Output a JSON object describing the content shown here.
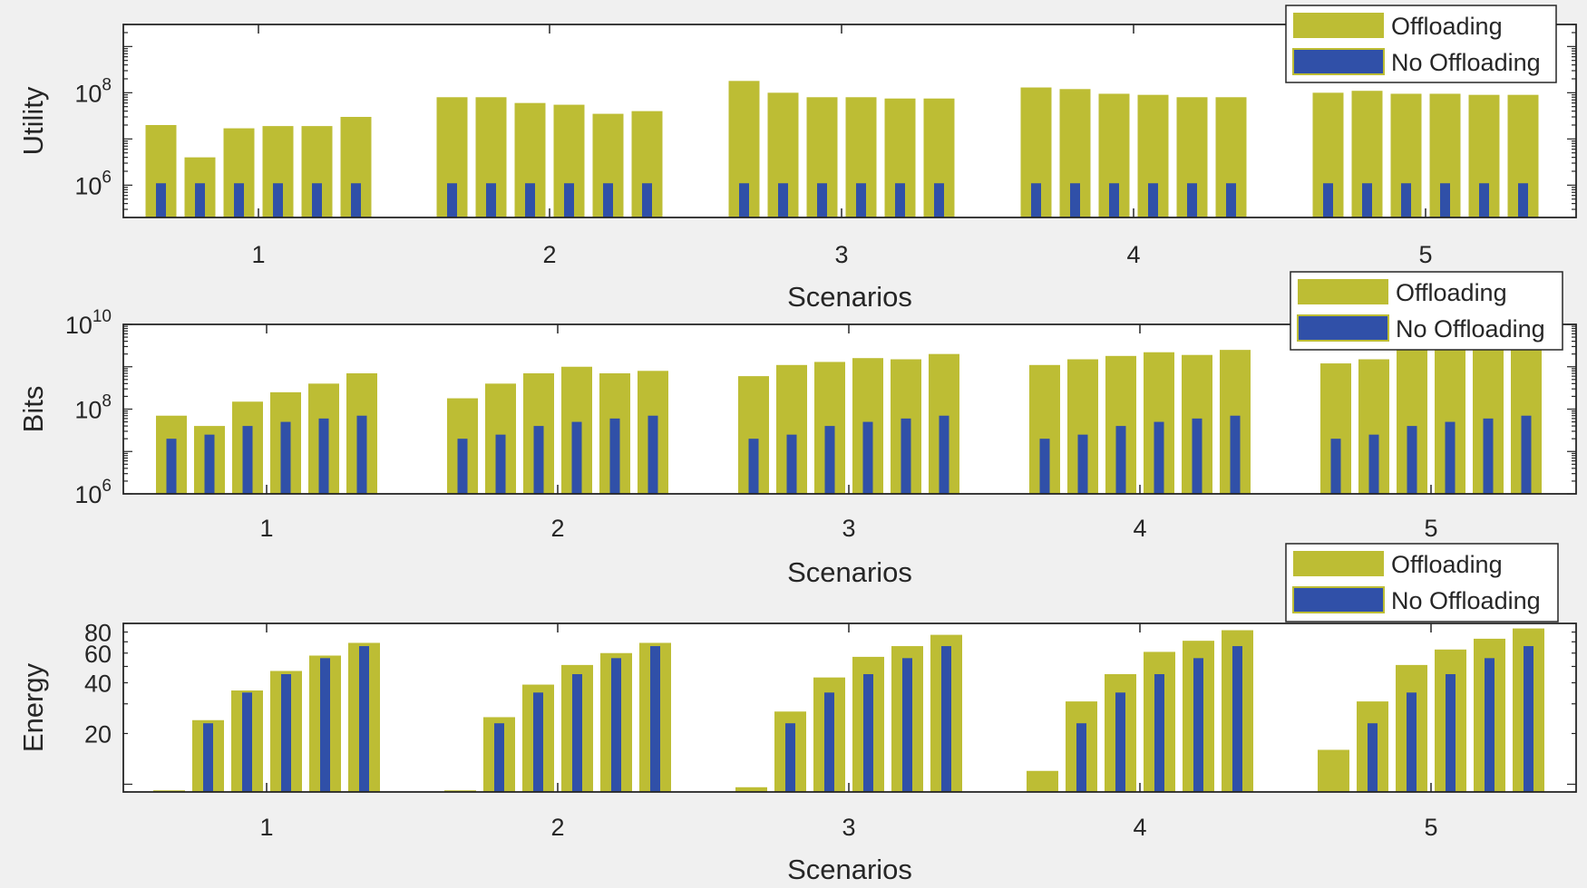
{
  "figure": {
    "background": "#f0f0f0"
  },
  "colors": {
    "offloading": "#bdbd34",
    "no_offloading": "#3050a8",
    "axis": "#262626"
  },
  "chart_data": [
    {
      "type": "bar",
      "title": "",
      "xlabel": "Scenarios",
      "ylabel": "Utility",
      "yscale": "log",
      "ylim": [
        200000,
        3000000000
      ],
      "yticks": [
        {
          "value": 1000000,
          "base": "10",
          "exp": "6"
        },
        {
          "value": 100000000,
          "base": "10",
          "exp": "8"
        }
      ],
      "categories": [
        "1",
        "2",
        "3",
        "4",
        "5"
      ],
      "series": [
        {
          "name": "Offloading",
          "values": [
            [
              20000000,
              4000000,
              17000000,
              19000000,
              19000000,
              30000000
            ],
            [
              80000000,
              80000000,
              60000000,
              55000000,
              35000000,
              40000000
            ],
            [
              180000000,
              100000000,
              80000000,
              80000000,
              75000000,
              75000000
            ],
            [
              130000000,
              120000000,
              95000000,
              90000000,
              80000000,
              80000000
            ],
            [
              100000000,
              110000000,
              95000000,
              95000000,
              90000000,
              90000000
            ]
          ]
        },
        {
          "name": "No Offloading",
          "values": [
            [
              1100000,
              1100000,
              1100000,
              1100000,
              1100000,
              1100000
            ],
            [
              1100000,
              1100000,
              1100000,
              1100000,
              1100000,
              1100000
            ],
            [
              1100000,
              1100000,
              1100000,
              1100000,
              1100000,
              1100000
            ],
            [
              1100000,
              1100000,
              1100000,
              1100000,
              1100000,
              1100000
            ],
            [
              1100000,
              1100000,
              1100000,
              1100000,
              1100000,
              1100000
            ]
          ]
        }
      ],
      "legend": {
        "entries": [
          "Offloading",
          "No Offloading"
        ],
        "location": "top-right"
      }
    },
    {
      "type": "bar",
      "title": "",
      "xlabel": "Scenarios",
      "ylabel": "Bits",
      "yscale": "log",
      "ylim": [
        1000000,
        10000000000
      ],
      "yticks": [
        {
          "value": 1000000,
          "base": "10",
          "exp": "6"
        },
        {
          "value": 100000000,
          "base": "10",
          "exp": "8"
        },
        {
          "value": 10000000000,
          "base": "10",
          "exp": "10"
        }
      ],
      "categories": [
        "1",
        "2",
        "3",
        "4",
        "5"
      ],
      "series": [
        {
          "name": "Offloading",
          "values": [
            [
              70000000,
              40000000,
              150000000,
              250000000,
              400000000,
              700000000
            ],
            [
              180000000,
              400000000,
              700000000,
              1000000000,
              700000000,
              800000000
            ],
            [
              600000000,
              1100000000,
              1300000000,
              1600000000,
              1500000000,
              2000000000
            ],
            [
              1100000000,
              1500000000,
              1800000000,
              2200000000,
              1900000000,
              2500000000
            ],
            [
              1200000000,
              1500000000,
              2700000000,
              3500000000,
              2700000000,
              3600000000
            ]
          ]
        },
        {
          "name": "No Offloading",
          "values": [
            [
              20000000,
              25000000,
              40000000,
              50000000,
              60000000,
              70000000
            ],
            [
              20000000,
              25000000,
              40000000,
              50000000,
              60000000,
              70000000
            ],
            [
              20000000,
              25000000,
              40000000,
              50000000,
              60000000,
              70000000
            ],
            [
              20000000,
              25000000,
              40000000,
              50000000,
              60000000,
              70000000
            ],
            [
              20000000,
              25000000,
              40000000,
              50000000,
              60000000,
              70000000
            ]
          ]
        }
      ],
      "legend": {
        "entries": [
          "Offloading",
          "No Offloading"
        ],
        "location": "top-right"
      }
    },
    {
      "type": "bar",
      "title": "",
      "xlabel": "Scenarios",
      "ylabel": "Energy",
      "yscale": "log",
      "ylim": [
        9,
        90
      ],
      "yticks": [
        {
          "value": 20,
          "base": "20",
          "exp": ""
        },
        {
          "value": 40,
          "base": "40",
          "exp": ""
        },
        {
          "value": 60,
          "base": "60",
          "exp": ""
        },
        {
          "value": 80,
          "base": "80",
          "exp": ""
        }
      ],
      "categories": [
        "1",
        "2",
        "3",
        "4",
        "5"
      ],
      "series": [
        {
          "name": "Offloading",
          "values": [
            [
              9.2,
              24,
              36,
              47,
              58,
              69
            ],
            [
              9.2,
              25,
              39,
              51,
              60,
              69
            ],
            [
              9.6,
              27,
              43,
              57,
              66,
              77
            ],
            [
              12,
              31,
              45,
              61,
              71,
              82
            ],
            [
              16,
              31,
              51,
              63,
              73,
              84
            ]
          ]
        },
        {
          "name": "No Offloading",
          "values": [
            [
              null,
              23,
              35,
              45,
              56,
              66
            ],
            [
              null,
              23,
              35,
              45,
              56,
              66
            ],
            [
              null,
              23,
              35,
              45,
              56,
              66
            ],
            [
              null,
              23,
              35,
              45,
              56,
              66
            ],
            [
              null,
              23,
              35,
              45,
              56,
              66
            ]
          ]
        }
      ],
      "legend": {
        "entries": [
          "Offloading",
          "No Offloading"
        ],
        "location": "top-right"
      }
    }
  ]
}
